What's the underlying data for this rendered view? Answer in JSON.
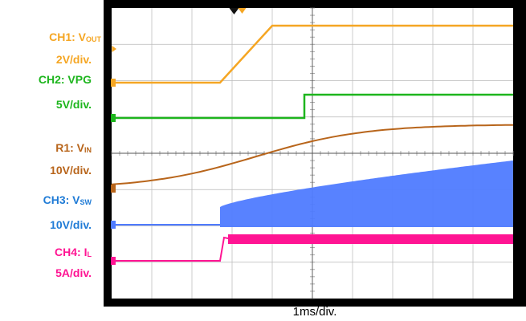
{
  "chart_data": {
    "type": "line",
    "time_base": "1ms/div.",
    "grid": true,
    "x_divisions": 10,
    "y_divisions": 8,
    "channels": [
      {
        "id": "ch1",
        "name_main": "CH1: V",
        "name_sub": "OUT",
        "scale": "2V/div.",
        "color": "#F5A623",
        "description": "output voltage ramps from 0 to ~8V between t=2.7 and 4.0 div, then flat"
      },
      {
        "id": "ch2",
        "name_main": "CH2: VPG",
        "name_sub": "",
        "scale": "5V/div.",
        "color": "#1DB51D",
        "description": "power good steps low to high at t=4.8 div"
      },
      {
        "id": "r1",
        "name_main": "R1: V",
        "name_sub": "IN",
        "scale": "10V/div.",
        "color": "#B8651B",
        "description": "input voltage rises slowly over full sweep"
      },
      {
        "id": "ch3",
        "name_main": "CH3: V",
        "name_sub": "SW",
        "scale": "10V/div.",
        "color": "#4F7BFF",
        "description": "switch node switching envelope starts at t=2.7 div, amplitude grows with VIN"
      },
      {
        "id": "ch4",
        "name_main": "CH4: I",
        "name_sub": "L",
        "scale": "5A/div.",
        "color": "#FF1493",
        "description": "inductor current steps up at t=2.7 div then steady ripple"
      }
    ]
  }
}
